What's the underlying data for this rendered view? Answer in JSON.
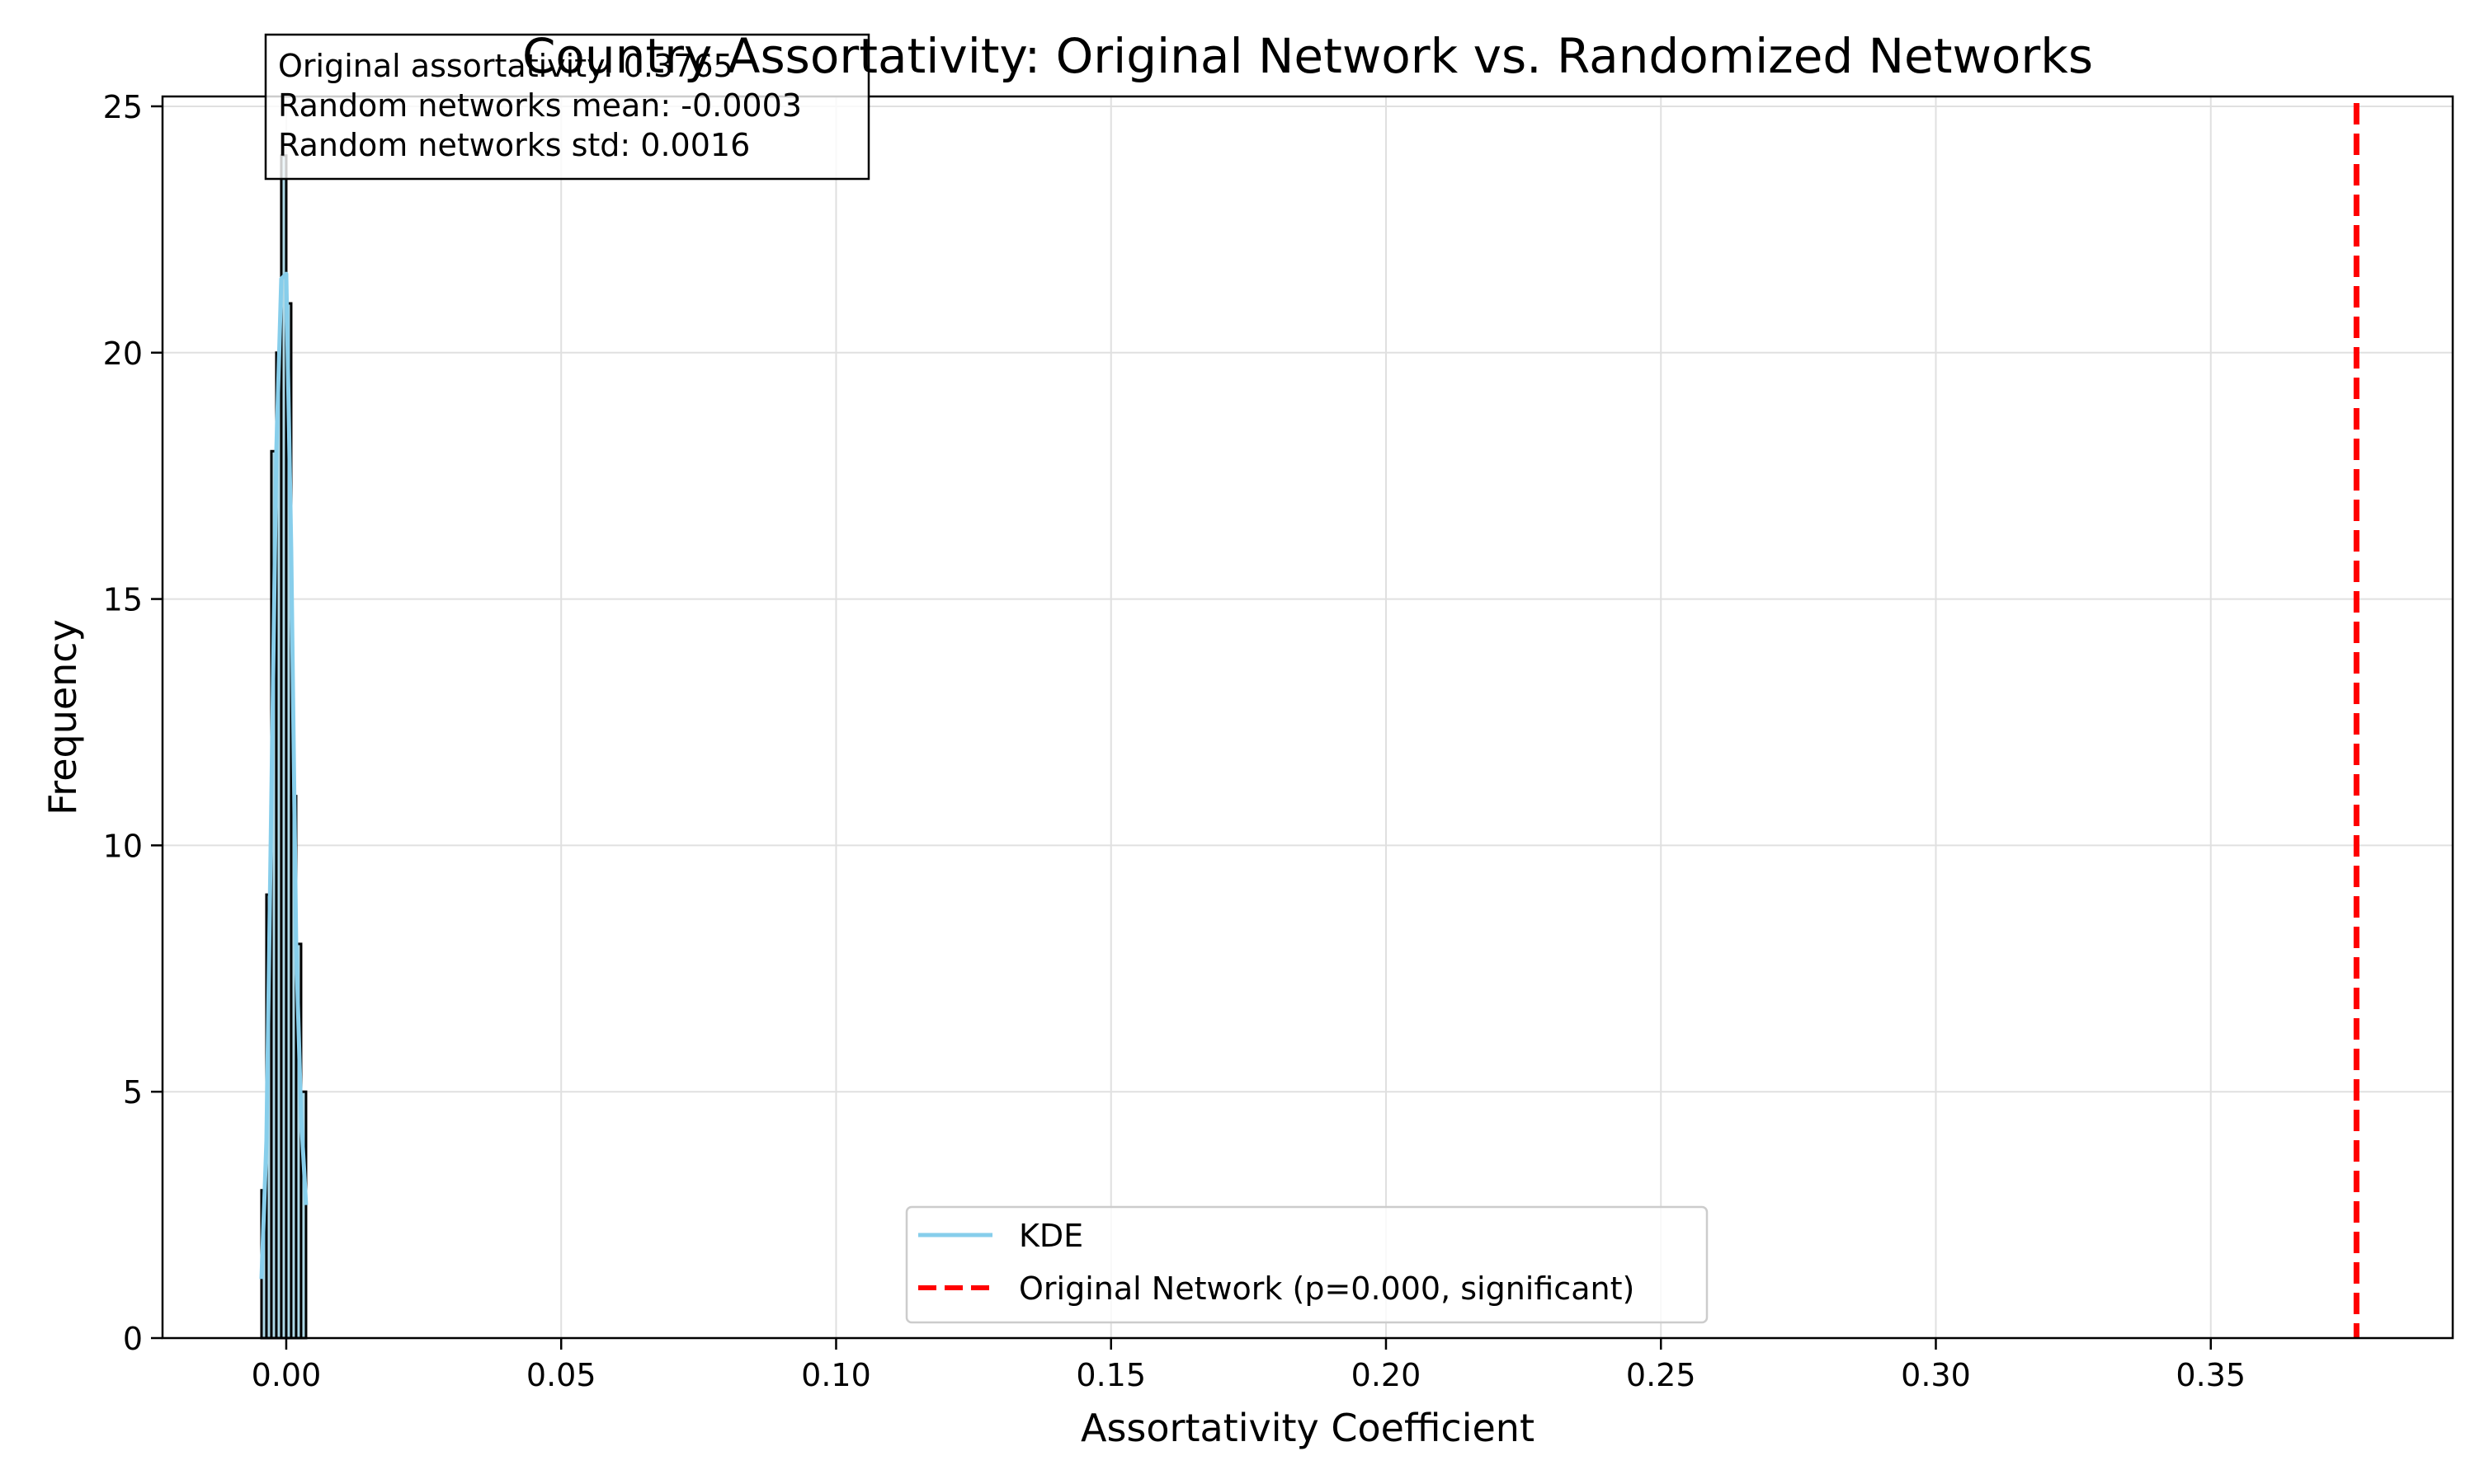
{
  "chart_data": {
    "type": "histogram",
    "title": "Country Assortativity: Original Network vs. Randomized Networks",
    "xlabel": "Assortativity Coefficient",
    "ylabel": "Frequency",
    "xlim": [
      -0.0225,
      0.394
    ],
    "ylim": [
      0,
      25.2
    ],
    "xticks": [
      0.0,
      0.05,
      0.1,
      0.15,
      0.2,
      0.25,
      0.3,
      0.35
    ],
    "xtick_labels": [
      "0.00",
      "0.05",
      "0.10",
      "0.15",
      "0.20",
      "0.25",
      "0.30",
      "0.35"
    ],
    "yticks": [
      0,
      5,
      10,
      15,
      20,
      25
    ],
    "ytick_labels": [
      "0",
      "5",
      "10",
      "15",
      "20",
      "25"
    ],
    "grid": true,
    "histogram": {
      "bin_edges": [
        -0.0045,
        -0.0036,
        -0.0027,
        -0.0018,
        -0.0009,
        0.0,
        0.0009,
        0.0018,
        0.0027,
        0.0036
      ],
      "counts": [
        3,
        9,
        18,
        20,
        24,
        21,
        11,
        8,
        5
      ],
      "fill": "#add8e6",
      "edge": "#000000"
    },
    "kde": {
      "name": "KDE",
      "color": "#87ceeb",
      "x": [
        -0.0045,
        -0.0036,
        -0.0027,
        -0.0018,
        -0.0009,
        0.0,
        0.0009,
        0.0018,
        0.0027,
        0.0036
      ],
      "y": [
        1.2,
        4.0,
        11.0,
        18.0,
        21.5,
        21.6,
        16.0,
        8.0,
        4.5,
        2.7
      ]
    },
    "reference_line": {
      "name": "Original Network (p=0.000, significant)",
      "x": 0.3765,
      "color": "#ff0000",
      "style": "dashed"
    },
    "legend": {
      "placement": "bottom-center",
      "entries": [
        "KDE",
        "Original Network (p=0.000, significant)"
      ]
    },
    "stats_box": {
      "placement": "top-left",
      "lines": [
        "Original assortativity: 0.3765",
        "Random networks mean: -0.0003",
        "Random networks std: 0.0016"
      ]
    }
  }
}
